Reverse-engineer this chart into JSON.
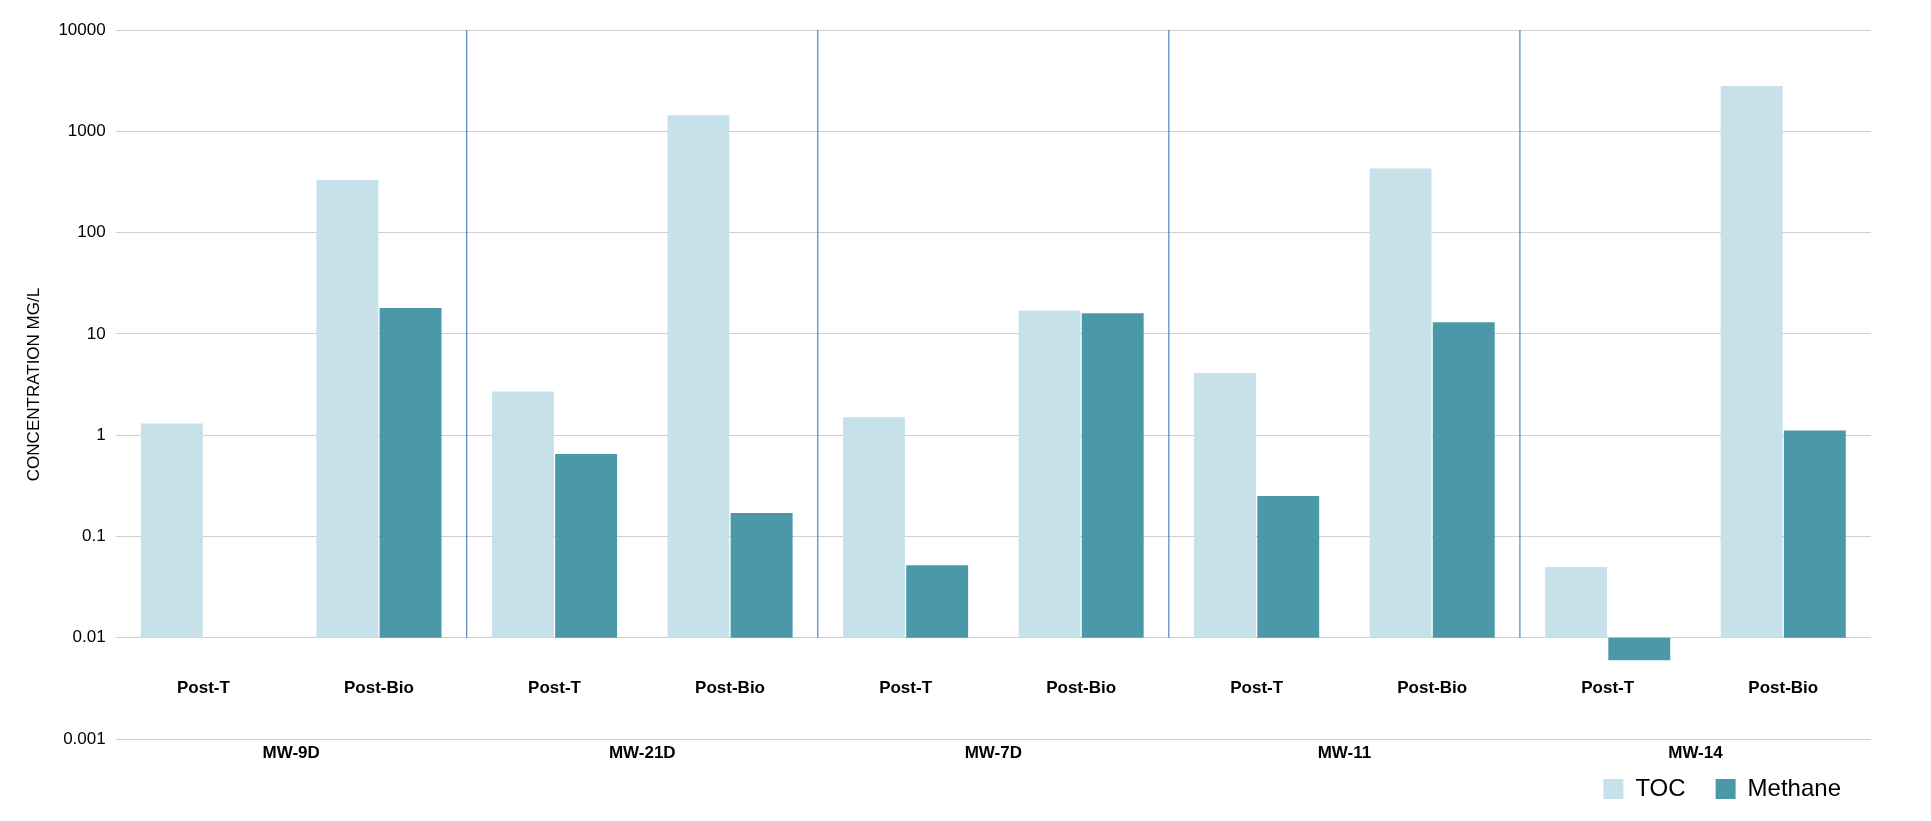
{
  "chart_data": {
    "type": "bar",
    "ylabel": "CONCENTRATION MG/L",
    "categories": [
      "Post-T",
      "Post-Bio",
      "Post-T",
      "Post-Bio",
      "Post-T",
      "Post-Bio",
      "Post-T",
      "Post-Bio",
      "Post-T",
      "Post-Bio"
    ],
    "annotations": [
      "MW-9D",
      "MW-21D",
      "MW-7D",
      "MW-11",
      "MW-14"
    ],
    "series": [
      {
        "name": "TOC",
        "color": "#c6e1ea",
        "base": [
          0.01,
          0.01,
          0.01,
          0.01,
          0.01,
          0.01,
          0.01,
          0.01,
          0.01,
          0.01
        ],
        "values": [
          1.29,
          330,
          2.69,
          1440,
          1.49,
          17,
          4.09,
          430,
          0.04,
          2800
        ]
      },
      {
        "name": "Methane",
        "color": "#4b98a9",
        "base": [
          null,
          0.01,
          0.01,
          0.01,
          0.01,
          0.01,
          0.01,
          0.01,
          0.01,
          0.01
        ],
        "values": [
          null,
          18,
          0.64,
          0.16,
          0.042,
          16,
          0.24,
          13,
          -0.004,
          1.1
        ]
      }
    ],
    "log": true,
    "ylim": [
      0.001,
      10000
    ],
    "yticks": [
      0.001,
      0.01,
      0.1,
      1,
      10,
      100,
      1000,
      10000
    ],
    "grid": "y",
    "legend": "bottom"
  }
}
